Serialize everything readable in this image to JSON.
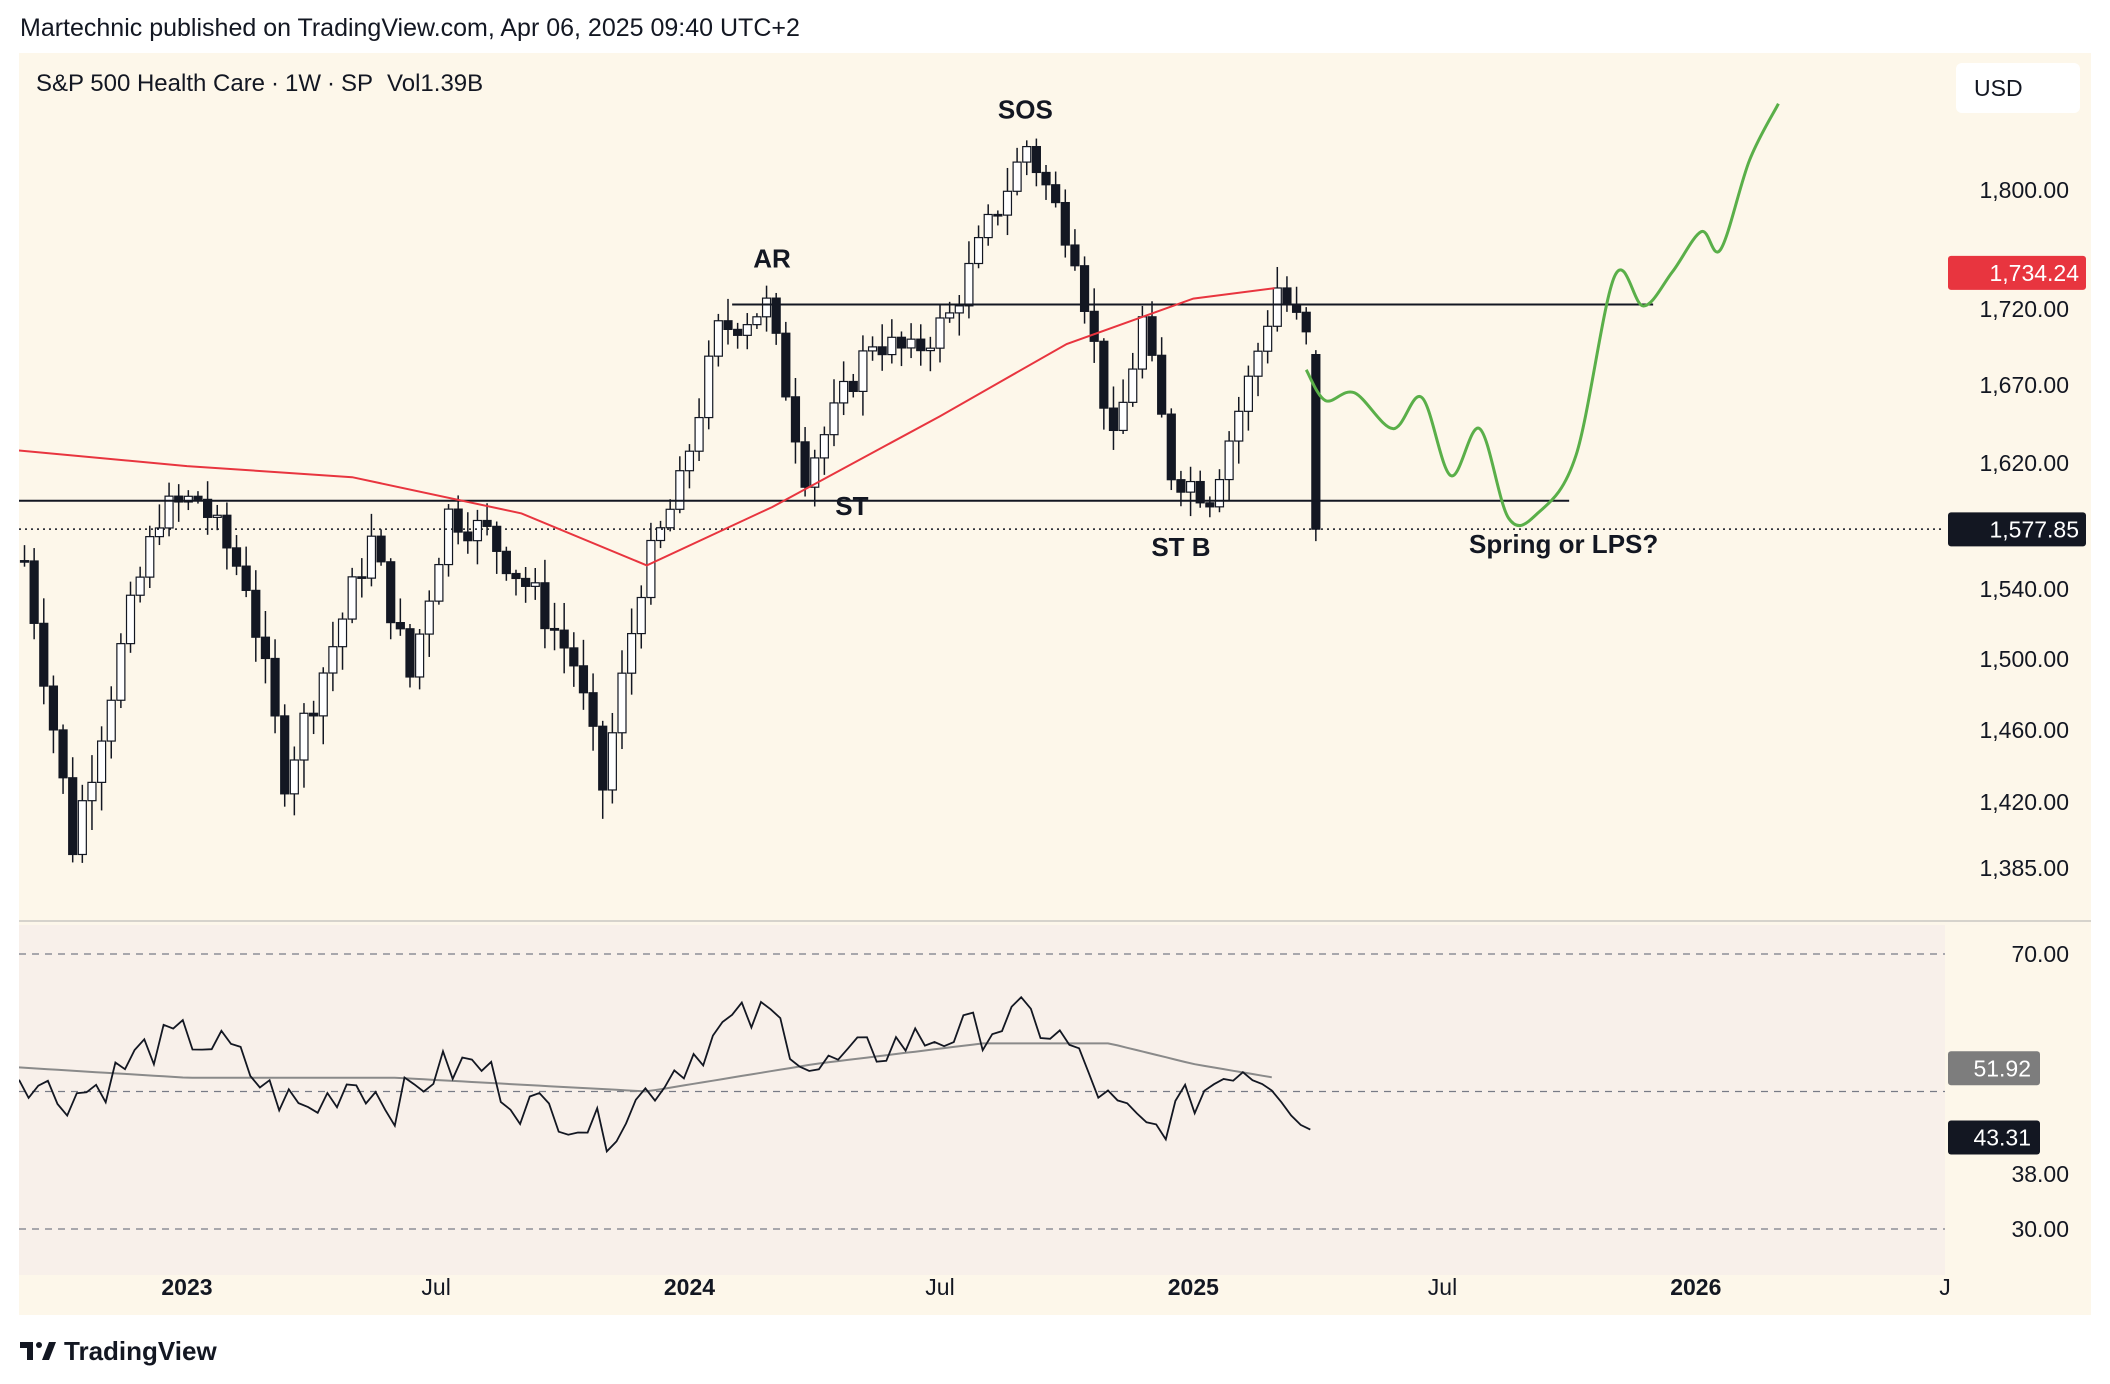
{
  "header": {
    "author": "Martechnic",
    "published_text": "published on TradingView.com, Apr 06, 2025 09:40 UTC+2"
  },
  "legend": {
    "symbol_name": "S&P 500 Health Care",
    "interval": "1W",
    "exchange": "SP",
    "volume_label": "Vol",
    "volume_value": "1.39",
    "volume_unit": "B"
  },
  "currency_button": "USD",
  "footer": {
    "brand": "TradingView",
    "icon": "tradingview-logo-icon"
  },
  "colors": {
    "background": "#fdf7ea",
    "rsi_background": "#f8f0ea",
    "ma_line": "#e8353f",
    "projection": "#5aaf49",
    "last_price_badge": "#131722",
    "ma_badge": "#e8353f",
    "rsi_ma_badge": "#7d7d7d",
    "text": "#131722"
  },
  "chart_data": [
    {
      "type": "candlestick",
      "title": "S&P 500 Health Care · 1W · SP",
      "timeframe": "weekly",
      "x_axis": {
        "tick_labels": [
          "2023",
          "Jul",
          "2024",
          "Jul",
          "2025",
          "Jul",
          "2026",
          "J"
        ],
        "bold_labels": [
          "2023",
          "2024",
          "2025",
          "2026"
        ],
        "range": [
          "2022-09",
          "2026-07"
        ]
      },
      "y_axis": {
        "tick_labels": [
          "1,800.00",
          "1,720.00",
          "1,670.00",
          "1,620.00",
          "1,540.00",
          "1,500.00",
          "1,460.00",
          "1,420.00",
          "1,385.00"
        ],
        "ylim": [
          1365,
          1890
        ]
      },
      "price_badges": [
        {
          "label": "1,734.24",
          "meaning": "moving average value",
          "color": "#e8353f"
        },
        {
          "label": "1,577.85",
          "meaning": "last price",
          "color": "#131722"
        }
      ],
      "price_path": {
        "dates": [
          "2022-09-05",
          "2022-10-10",
          "2022-11-14",
          "2022-12-12",
          "2023-01-09",
          "2023-02-13",
          "2023-03-13",
          "2023-04-17",
          "2023-05-15",
          "2023-06-12",
          "2023-07-10",
          "2023-08-07",
          "2023-09-11",
          "2023-10-09",
          "2023-10-30",
          "2023-11-27",
          "2023-12-25",
          "2024-01-22",
          "2024-02-26",
          "2024-03-25",
          "2024-04-15",
          "2024-05-13",
          "2024-06-10",
          "2024-07-08",
          "2024-08-05",
          "2024-09-02",
          "2024-10-07",
          "2024-11-04",
          "2024-11-25",
          "2024-12-16",
          "2025-01-13",
          "2025-02-10",
          "2025-03-03",
          "2025-03-24",
          "2025-03-31"
        ],
        "close": [
          1558,
          1398,
          1505,
          1588,
          1598,
          1545,
          1435,
          1508,
          1570,
          1490,
          1588,
          1575,
          1535,
          1498,
          1428,
          1545,
          1605,
          1705,
          1722,
          1615,
          1650,
          1700,
          1690,
          1715,
          1775,
          1830,
          1760,
          1630,
          1712,
          1615,
          1600,
          1672,
          1735,
          1700,
          1578
        ]
      },
      "levels": [
        {
          "name": "resistance",
          "value": 1723,
          "from": "2024-02",
          "to": "2025-12"
        },
        {
          "name": "support",
          "value": 1596,
          "from": "2022-09",
          "to": "2025-10"
        },
        {
          "name": "last-price",
          "value": 1578,
          "style": "dotted"
        }
      ],
      "moving_average": {
        "color": "#e8353f",
        "dates": [
          "2022-09",
          "2023-01",
          "2023-05",
          "2023-09",
          "2023-12",
          "2024-03",
          "2024-07",
          "2024-10",
          "2025-01",
          "2025-03"
        ],
        "values": [
          1628,
          1618,
          1611,
          1588,
          1555,
          1592,
          1650,
          1697,
          1727,
          1734
        ]
      },
      "projection": {
        "color": "#5aaf49",
        "dates": [
          "2025-03-24",
          "2025-04-07",
          "2025-04-28",
          "2025-05-26",
          "2025-06-16",
          "2025-07-07",
          "2025-07-28",
          "2025-08-18",
          "2025-09-08",
          "2025-10-06",
          "2025-11-03",
          "2025-11-24",
          "2025-12-15",
          "2026-01-05",
          "2026-01-19",
          "2026-02-09",
          "2026-03-02"
        ],
        "values": [
          1680,
          1660,
          1665,
          1642,
          1662,
          1612,
          1642,
          1585,
          1588,
          1625,
          1742,
          1722,
          1745,
          1772,
          1760,
          1820,
          1858
        ]
      },
      "annotations": [
        "AR",
        "SOS",
        "ST",
        "ST B",
        "Spring or LPS?"
      ]
    },
    {
      "type": "line",
      "indicator": "RSI",
      "y_axis": {
        "tick_labels": [
          "70.00",
          "38.00",
          "30.00"
        ],
        "ylim": [
          27,
          72
        ]
      },
      "bands": [
        70,
        50,
        30
      ],
      "badges": [
        {
          "label": "51.92",
          "meaning": "RSI moving average",
          "color": "#7d7d7d"
        },
        {
          "label": "43.31",
          "meaning": "RSI value",
          "color": "#131722"
        }
      ],
      "rsi": {
        "dates": [
          "2022-09",
          "2022-10",
          "2022-11",
          "2022-12",
          "2023-01",
          "2023-02",
          "2023-03",
          "2023-04",
          "2023-05",
          "2023-06",
          "2023-07",
          "2023-08",
          "2023-09",
          "2023-10",
          "2023-11",
          "2023-12",
          "2024-01",
          "2024-02",
          "2024-03",
          "2024-04",
          "2024-05",
          "2024-06",
          "2024-07",
          "2024-08",
          "2024-09",
          "2024-10",
          "2024-11",
          "2024-12",
          "2025-01",
          "2025-02",
          "2025-03",
          "2025-03-31"
        ],
        "values": [
          53,
          49,
          51,
          56,
          58,
          56,
          50,
          47,
          52,
          48,
          53,
          54,
          48,
          47,
          44,
          50,
          55,
          60,
          61,
          53,
          55,
          57,
          58,
          59,
          61,
          57,
          48,
          44,
          49,
          54,
          52,
          43.3
        ]
      },
      "rsi_ma": {
        "dates": [
          "2022-09",
          "2023-01",
          "2023-06",
          "2023-12",
          "2024-04",
          "2024-08",
          "2024-11",
          "2025-01",
          "2025-03"
        ],
        "values": [
          53.5,
          52,
          52,
          50,
          54,
          57,
          57,
          54,
          52
        ]
      }
    }
  ]
}
